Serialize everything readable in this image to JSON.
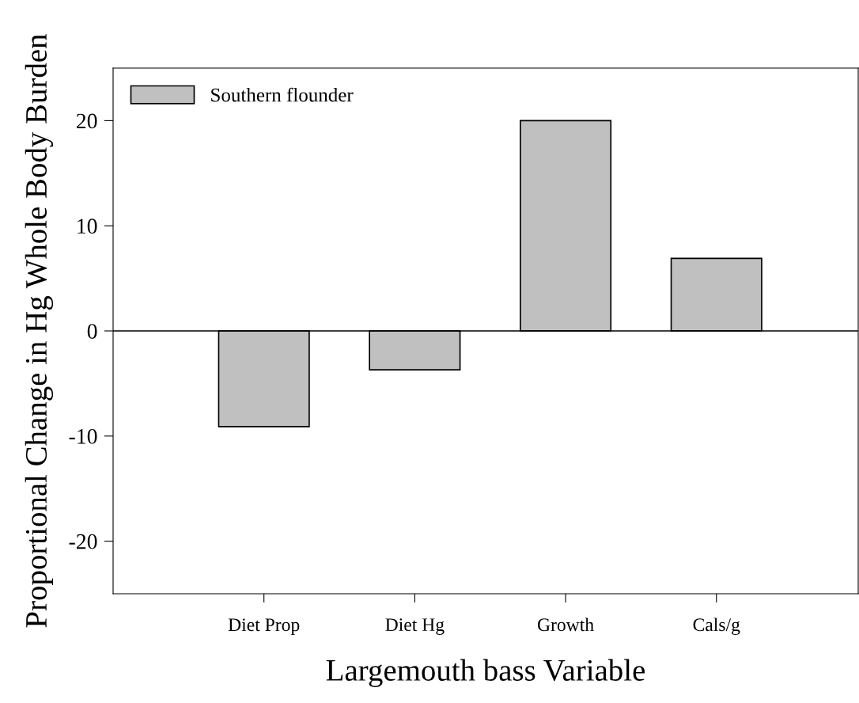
{
  "chart_data": {
    "type": "bar",
    "xlabel": "Largemouth bass Variable",
    "ylabel": "Proportional Change in Hg Whole Body Burden",
    "categories": [
      "Diet Prop",
      "Diet Hg",
      "Growth",
      "Cals/g"
    ],
    "series": [
      {
        "name": "Southern flounder",
        "color": "#c0c0c0",
        "values": [
          -9.1,
          -3.7,
          20,
          6.9
        ]
      }
    ],
    "ylim": [
      -25,
      25
    ],
    "yticks": [
      {
        "value": -20,
        "label": "-20"
      },
      {
        "value": -10,
        "label": "-10"
      },
      0,
      10,
      20
    ],
    "ref_lines": [
      {
        "axis": "y",
        "value": 0,
        "color": "#000000"
      }
    ],
    "grid": false,
    "legend": "top left"
  }
}
